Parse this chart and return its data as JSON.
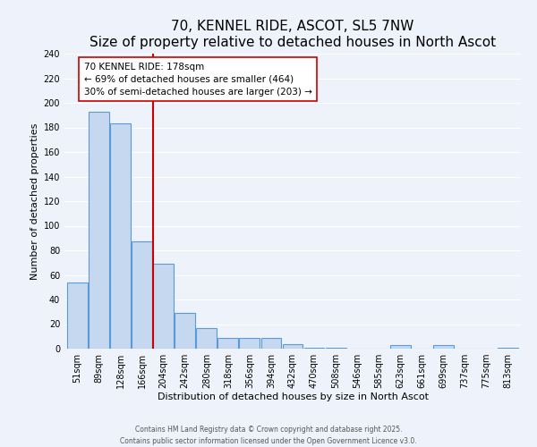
{
  "title": "70, KENNEL RIDE, ASCOT, SL5 7NW",
  "subtitle": "Size of property relative to detached houses in North Ascot",
  "xlabel": "Distribution of detached houses by size in North Ascot",
  "ylabel": "Number of detached properties",
  "categories": [
    "51sqm",
    "89sqm",
    "128sqm",
    "166sqm",
    "204sqm",
    "242sqm",
    "280sqm",
    "318sqm",
    "356sqm",
    "394sqm",
    "432sqm",
    "470sqm",
    "508sqm",
    "546sqm",
    "585sqm",
    "623sqm",
    "661sqm",
    "699sqm",
    "737sqm",
    "775sqm",
    "813sqm"
  ],
  "values": [
    54,
    193,
    183,
    87,
    69,
    29,
    17,
    9,
    9,
    9,
    4,
    1,
    1,
    0,
    0,
    3,
    0,
    3,
    0,
    0,
    1
  ],
  "bar_color": "#c5d8f0",
  "bar_edge_color": "#5b9bd5",
  "vline_x": 3.5,
  "vline_color": "#cc0000",
  "annotation_line1": "70 KENNEL RIDE: 178sqm",
  "annotation_line2": "← 69% of detached houses are smaller (464)",
  "annotation_line3": "30% of semi-detached houses are larger (203) →",
  "annotation_box_color": "#ffffff",
  "annotation_box_edge": "#cc0000",
  "ylim": [
    0,
    240
  ],
  "yticks": [
    0,
    20,
    40,
    60,
    80,
    100,
    120,
    140,
    160,
    180,
    200,
    220,
    240
  ],
  "title_fontsize": 11,
  "xlabel_fontsize": 8,
  "ylabel_fontsize": 8,
  "tick_fontsize": 7,
  "annotation_fontsize": 7.5,
  "footer_line1": "Contains HM Land Registry data © Crown copyright and database right 2025.",
  "footer_line2": "Contains public sector information licensed under the Open Government Licence v3.0.",
  "bg_color": "#eef2fa",
  "plot_bg_color": "#eef2fa",
  "grid_color": "#ffffff",
  "grid_alpha": 1.0
}
